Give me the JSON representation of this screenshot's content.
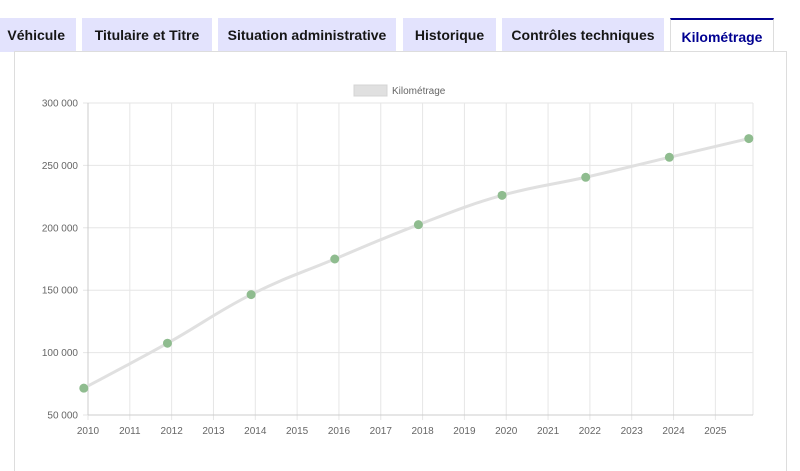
{
  "tabs": [
    {
      "label": "Véhicule",
      "active": false
    },
    {
      "label": "Titulaire et Titre",
      "active": false
    },
    {
      "label": "Situation administrative",
      "active": false
    },
    {
      "label": "Historique",
      "active": false
    },
    {
      "label": "Contrôles techniques",
      "active": false
    },
    {
      "label": "Kilométrage",
      "active": true
    }
  ],
  "colors": {
    "tab_bg": "#e3e3fd",
    "tab_active_border": "#000091",
    "line": "#e0e0e0",
    "point": "#8fbc8f"
  },
  "chart_data": {
    "type": "line",
    "legend": {
      "label": "Kilométrage",
      "position": "top-center"
    },
    "x_ticks": [
      "2010",
      "2011",
      "2012",
      "2013",
      "2014",
      "2015",
      "2016",
      "2017",
      "2018",
      "2019",
      "2020",
      "2021",
      "2022",
      "2023",
      "2024",
      "2025"
    ],
    "y_ticks": [
      "50 000",
      "100 000",
      "150 000",
      "200 000",
      "250 000",
      "300 000"
    ],
    "xlim": [
      2010,
      2025.9
    ],
    "ylim": [
      50000,
      300000
    ],
    "grid": true,
    "series": [
      {
        "name": "Kilométrage",
        "x": [
          2009.9,
          2011.9,
          2013.9,
          2015.9,
          2017.9,
          2019.9,
          2021.9,
          2023.9,
          2025.8
        ],
        "y": [
          71500,
          107500,
          146500,
          175000,
          202500,
          226000,
          240500,
          256500,
          271500
        ]
      }
    ]
  }
}
